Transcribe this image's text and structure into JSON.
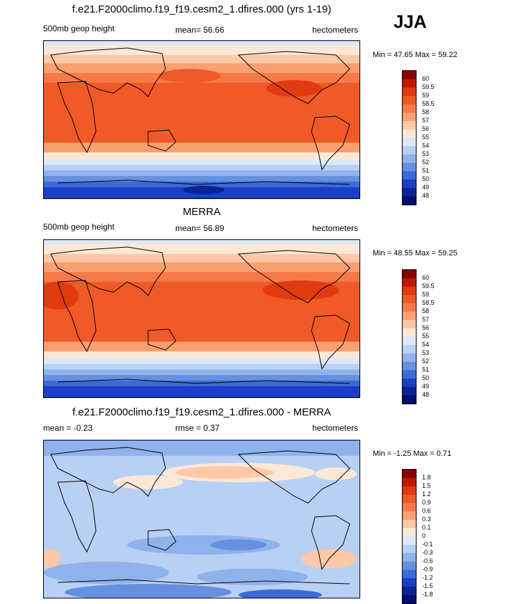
{
  "season": "JJA",
  "panels": [
    {
      "id": "model",
      "title": "f.e21.F2000climo.f19_f19.cesm2_1.dfires.000 (yrs 1-19)",
      "left_label": "500mb geop height",
      "center_label": "mean=  56.66",
      "right_label": "hectometers",
      "min_max": "Min =  47.65 Max =  59.22",
      "colorbar_labels": [
        "60",
        "59.5",
        "59",
        "58.5",
        "58",
        "57",
        "56",
        "55",
        "54",
        "53",
        "52",
        "51",
        "50",
        "49",
        "48"
      ],
      "colorbar_colors": [
        "#8b0000",
        "#bf1a00",
        "#e03a10",
        "#f05a28",
        "#f67a48",
        "#f9a070",
        "#fcc8a8",
        "#fde8d8",
        "#dde8f8",
        "#b8d0f4",
        "#8fb2ec",
        "#6690e0",
        "#3c6ad8",
        "#1a40c8",
        "#0a2494",
        "#001070"
      ]
    },
    {
      "id": "obs",
      "title": "MERRA",
      "left_label": "500mb geop height",
      "center_label": "mean=  56.89",
      "right_label": "hectometers",
      "min_max": "Min =  48.55 Max =  59.25",
      "colorbar_labels": [
        "60",
        "59.5",
        "59",
        "58.5",
        "58",
        "57",
        "56",
        "55",
        "54",
        "53",
        "52",
        "51",
        "50",
        "49",
        "48"
      ],
      "colorbar_colors": [
        "#8b0000",
        "#bf1a00",
        "#e03a10",
        "#f05a28",
        "#f67a48",
        "#f9a070",
        "#fcc8a8",
        "#fde8d8",
        "#dde8f8",
        "#b8d0f4",
        "#8fb2ec",
        "#6690e0",
        "#3c6ad8",
        "#1a40c8",
        "#0a2494",
        "#001070"
      ]
    },
    {
      "id": "diff",
      "title": "f.e21.F2000climo.f19_f19.cesm2_1.dfires.000 - MERRA",
      "left_label": "mean =  -0.23",
      "center_label": "rmse =   0.37",
      "right_label": "hectometers",
      "min_max": "Min =  -1.25 Max =   0.71",
      "colorbar_labels": [
        "1.8",
        "1.5",
        "1.2",
        "0.9",
        "0.6",
        "0.3",
        "0.1",
        "0",
        "-0.1",
        "-0.3",
        "-0.6",
        "-0.9",
        "-1.2",
        "-1.5",
        "-1.8"
      ],
      "colorbar_colors": [
        "#8b0000",
        "#bf1a00",
        "#e03a10",
        "#f05a28",
        "#f67a48",
        "#f9a070",
        "#fcc8a8",
        "#fde8d8",
        "#dde8f8",
        "#b8d0f4",
        "#8fb2ec",
        "#6690e0",
        "#3c6ad8",
        "#1a40c8",
        "#0a2494",
        "#001070"
      ]
    }
  ]
}
